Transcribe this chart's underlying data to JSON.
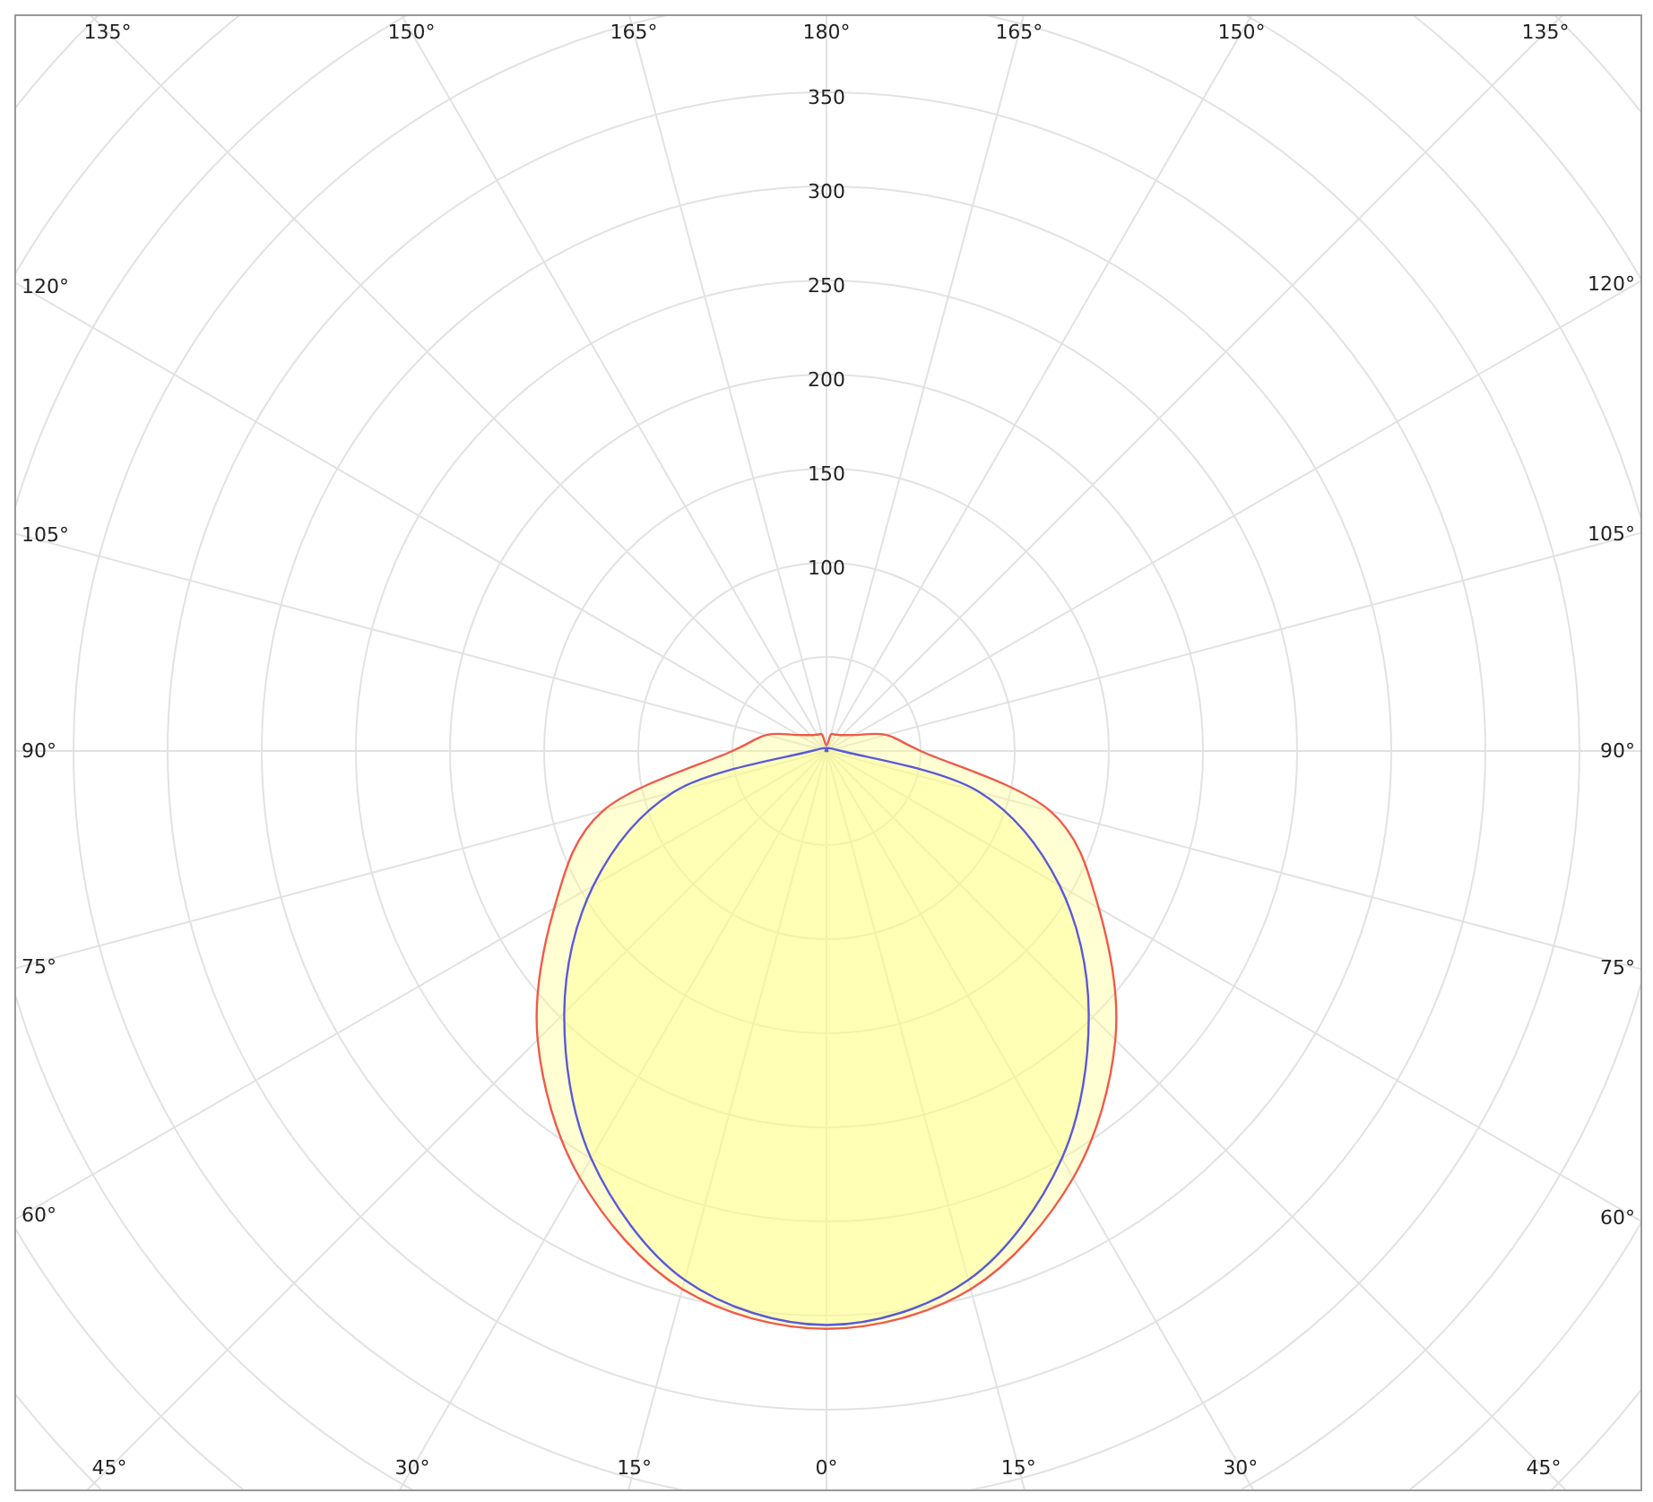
{
  "chart_data": {
    "type": "radar",
    "categories": [
      "180°",
      "165°",
      "150°",
      "135°",
      "120°",
      "105°",
      "90°",
      "75°",
      "60°",
      "45°",
      "30°",
      "15°",
      "0°",
      "15°",
      "30°",
      "45°",
      "60°",
      "75°",
      "90°",
      "105°",
      "120°",
      "135°",
      "150°",
      "165°"
    ],
    "series": [
      {
        "color": "#f05a4a",
        "values": [
          3,
          9,
          10,
          12,
          17,
          33,
          50,
          123,
          167,
          217,
          262,
          296,
          307,
          296,
          262,
          217,
          167,
          123,
          50,
          33,
          17,
          12,
          10,
          9
        ]
      },
      {
        "color": "#5a5ad8",
        "values": [
          0,
          0,
          0,
          0,
          0,
          0,
          8,
          84,
          143,
          197,
          250,
          291,
          305,
          291,
          250,
          197,
          143,
          84,
          8,
          0,
          0,
          0,
          0,
          0
        ]
      }
    ],
    "ylim": [
      0,
      600
    ],
    "yticks": [
      100,
      150,
      200,
      250,
      300,
      350
    ],
    "grid": true
  }
}
